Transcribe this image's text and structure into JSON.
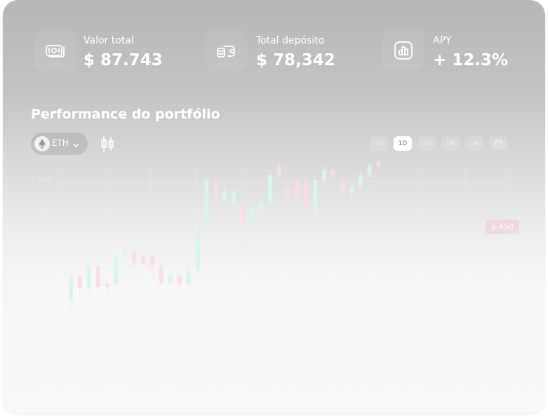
{
  "stats": [
    {
      "label": "Valor total",
      "value": "$ 87.743",
      "icon": "money-stack-icon"
    },
    {
      "label": "Total depósito",
      "value": "$ 78,342",
      "icon": "coins-wallet-icon"
    },
    {
      "label": "APY",
      "value": "+ 12.3%",
      "icon": "bar-chart-icon"
    }
  ],
  "performance": {
    "title": "Performance do portfólio",
    "asset": "ETH",
    "asset_icon": "ethereum-icon",
    "ranges": [
      "1H",
      "1D",
      "3D",
      "1M",
      "1A"
    ],
    "active_range": "1D",
    "current_price": "$ 450"
  },
  "chart_data": {
    "type": "candlestick",
    "y_tick_labels": [
      "$ 500",
      "$ 450"
    ],
    "candles": [
      {
        "o": 60,
        "c": 95,
        "h": 105,
        "l": 45,
        "up": true
      },
      {
        "o": 95,
        "c": 78,
        "h": 100,
        "l": 70,
        "up": false
      },
      {
        "o": 78,
        "c": 110,
        "h": 118,
        "l": 72,
        "up": true
      },
      {
        "o": 110,
        "c": 80,
        "h": 112,
        "l": 74,
        "up": false
      },
      {
        "o": 80,
        "c": 84,
        "h": 92,
        "l": 62,
        "up": false
      },
      {
        "o": 84,
        "c": 125,
        "h": 132,
        "l": 80,
        "up": true
      },
      {
        "o": 125,
        "c": 132,
        "h": 140,
        "l": 118,
        "up": true
      },
      {
        "o": 132,
        "c": 116,
        "h": 136,
        "l": 110,
        "up": false
      },
      {
        "o": 116,
        "c": 128,
        "h": 130,
        "l": 114,
        "up": false
      },
      {
        "o": 128,
        "c": 112,
        "h": 130,
        "l": 98,
        "up": false
      },
      {
        "o": 112,
        "c": 86,
        "h": 116,
        "l": 80,
        "up": false
      },
      {
        "o": 86,
        "c": 96,
        "h": 104,
        "l": 82,
        "up": true
      },
      {
        "o": 96,
        "c": 84,
        "h": 100,
        "l": 78,
        "up": false
      },
      {
        "o": 84,
        "c": 106,
        "h": 114,
        "l": 80,
        "up": true
      },
      {
        "o": 106,
        "c": 160,
        "h": 168,
        "l": 100,
        "up": true
      },
      {
        "o": 160,
        "c": 238,
        "h": 248,
        "l": 152,
        "up": true
      },
      {
        "o": 238,
        "c": 208,
        "h": 244,
        "l": 200,
        "up": false
      },
      {
        "o": 208,
        "c": 224,
        "h": 232,
        "l": 204,
        "up": true
      },
      {
        "o": 224,
        "c": 202,
        "h": 228,
        "l": 196,
        "up": true
      },
      {
        "o": 202,
        "c": 176,
        "h": 206,
        "l": 168,
        "up": false
      },
      {
        "o": 176,
        "c": 196,
        "h": 204,
        "l": 170,
        "up": true
      },
      {
        "o": 196,
        "c": 206,
        "h": 210,
        "l": 172,
        "up": true
      },
      {
        "o": 206,
        "c": 248,
        "h": 256,
        "l": 200,
        "up": true
      },
      {
        "o": 248,
        "c": 262,
        "h": 268,
        "l": 236,
        "up": false
      },
      {
        "o": 228,
        "c": 210,
        "h": 234,
        "l": 206,
        "up": false
      },
      {
        "o": 214,
        "c": 240,
        "h": 244,
        "l": 208,
        "up": false
      },
      {
        "o": 240,
        "c": 196,
        "h": 246,
        "l": 190,
        "up": false
      },
      {
        "o": 196,
        "c": 240,
        "h": 246,
        "l": 190,
        "up": true
      },
      {
        "o": 240,
        "c": 256,
        "h": 262,
        "l": 232,
        "up": true
      },
      {
        "o": 256,
        "c": 246,
        "h": 262,
        "l": 238,
        "up": false
      },
      {
        "o": 238,
        "c": 220,
        "h": 246,
        "l": 214,
        "up": false
      },
      {
        "o": 220,
        "c": 230,
        "h": 240,
        "l": 210,
        "up": true
      },
      {
        "o": 230,
        "c": 248,
        "h": 254,
        "l": 226,
        "up": true
      },
      {
        "o": 248,
        "c": 262,
        "h": 276,
        "l": 244,
        "up": true
      },
      {
        "o": 262,
        "c": 268,
        "h": 272,
        "l": 256,
        "up": false
      }
    ]
  }
}
